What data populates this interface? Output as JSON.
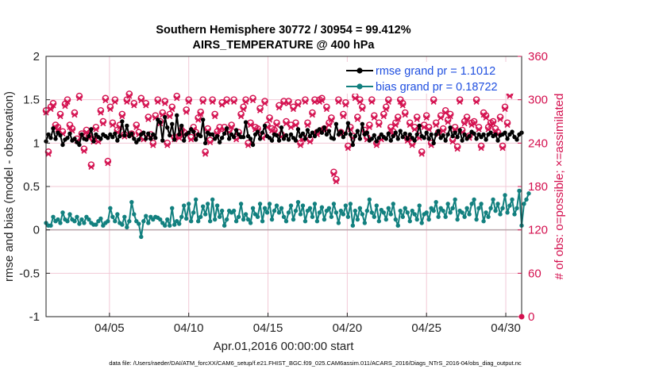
{
  "chart_data": {
    "type": "line",
    "title_line1": "Southern Hemisphere 30772 / 30954 = 99.412%",
    "title_line2": "AIRS_TEMPERATURE @ 400 hPa",
    "xlabel": "Apr.01,2016 00:00:00 start",
    "ylabel_left": "rmse and bias (model - observation)",
    "ylabel_right": "# of obs: o=possible; ×=assimilated",
    "xlim": [
      1,
      31
    ],
    "ylim_left": [
      -1,
      2
    ],
    "ylim_right": [
      0,
      360
    ],
    "x_ticks": [
      5,
      10,
      15,
      20,
      25,
      30
    ],
    "x_tick_labels": [
      "04/05",
      "04/10",
      "04/15",
      "04/20",
      "04/25",
      "04/30"
    ],
    "y_ticks_left": [
      -1,
      -0.5,
      0,
      0.5,
      1,
      1.5,
      2
    ],
    "y_tick_labels_left": [
      "-1",
      "-0.5",
      "0",
      "0.5",
      "1",
      "1.5",
      "2"
    ],
    "y_ticks_right": [
      0,
      60,
      120,
      180,
      240,
      300,
      360
    ],
    "y_tick_labels_right": [
      "0",
      "60",
      "120",
      "180",
      "240",
      "300",
      "360"
    ],
    "footnote": "data file: /Users/raeder/DAI/ATM_forcXX/CAM6_setup/f.e21.FHIST_BGC.f09_025.CAM6assim.011/ACARS_2016/Diags_NTrS_2016-04/obs_diag_output.nc",
    "colors": {
      "rmse": "#000000",
      "bias": "#12807f",
      "obs": "#d4104f",
      "zero_line": "#b7a3a8",
      "grid": "#f2c9d6"
    },
    "series": [
      {
        "name": "rmse grand pr = 1.1012",
        "values": [
          1.02,
          1.1,
          1.06,
          1.17,
          1.05,
          1.12,
          1.09,
          0.98,
          1.04,
          1.06,
          1.11,
          1.03,
          1.05,
          1.01,
          0.98,
          1.1,
          1.05,
          1.04,
          1.08,
          1.16,
          1.02,
          1.1,
          1.07,
          1.05,
          1.1,
          1.08,
          1.06,
          1.1,
          1.07,
          1.11,
          1.03,
          1.08,
          1.25,
          1.09,
          1.2,
          1.08,
          1.11,
          1.05,
          1.01,
          1.04,
          1.1,
          1.12,
          1.05,
          1.11,
          1.05,
          1.1,
          1.06,
          1.27,
          1.24,
          1.03,
          1.3,
          1.18,
          1.09,
          1.22,
          1.04,
          1.32,
          1.1,
          1.2,
          1.03,
          1.1,
          1.12,
          1.16,
          1.13,
          1.04,
          1.1,
          1.08,
          1.27,
          1.0,
          1.12,
          1.1,
          1.1,
          1.05,
          1.08,
          1.01,
          1.06,
          1.11,
          1.17,
          1.05,
          1.1,
          1.07,
          1.15,
          1.1,
          1.07,
          1.07,
          1.24,
          1.08,
          1.05,
          0.98,
          1.1,
          1.13,
          1.05,
          1.12,
          1.2,
          1.08,
          1.06,
          1.03,
          1.1,
          1.09,
          1.03,
          1.18,
          1.05,
          1.09,
          1.04,
          1.1,
          1.06,
          1.03,
          1.16,
          1.08,
          1.11,
          1.05,
          1.15,
          1.08,
          1.12,
          1.08,
          1.14,
          1.16,
          1.12,
          1.18,
          1.1,
          1.14,
          1.06,
          1.05,
          1.22,
          1.1,
          1.13,
          1.07,
          1.11,
          1.23,
          1.1,
          0.98,
          1.08,
          1.14,
          1.05,
          1.22,
          1.1,
          1.12,
          1.03,
          1.05,
          1.09,
          1.02,
          1.06,
          1.1,
          1.07,
          1.05,
          1.11,
          1.03,
          1.08,
          1.12,
          1.05,
          1.14,
          1.07,
          1.11,
          1.05,
          1.1,
          1.06,
          1.03,
          1.1,
          1.2,
          1.08,
          1.06,
          1.12,
          1.05,
          1.1,
          1.0,
          1.1,
          1.14,
          1.06,
          1.09,
          1.03,
          1.1,
          1.18,
          1.08,
          1.12,
          1.07,
          1.15,
          1.03,
          1.1,
          1.05,
          1.08,
          1.13,
          1.11,
          1.05,
          1.1,
          1.07,
          1.1,
          1.04,
          1.1,
          1.12,
          1.08,
          1.1,
          1.03,
          1.09,
          1.1,
          1.12,
          1.05,
          1.1,
          1.13,
          1.07,
          1.04,
          1.1,
          1.12
        ]
      },
      {
        "name": "bias grand pr = 0.18722",
        "values": [
          0.08,
          0.05,
          0.05,
          0.15,
          0.1,
          0.12,
          0.08,
          0.2,
          0.12,
          0.1,
          0.18,
          0.12,
          0.1,
          0.15,
          0.07,
          0.12,
          0.08,
          0.15,
          0.12,
          0.08,
          0.06,
          0.06,
          0.1,
          0.13,
          0.05,
          0.08,
          0.1,
          0.25,
          0.15,
          0.1,
          0.18,
          0.08,
          0.06,
          0.15,
          0.03,
          0.1,
          0.32,
          0.18,
          0.1,
          0.07,
          -0.08,
          0.1,
          0.16,
          0.08,
          0.15,
          0.12,
          0.15,
          0.14,
          0.12,
          0.08,
          0.05,
          0.12,
          0.05,
          0.25,
          0.06,
          0.1,
          0.07,
          0.15,
          0.28,
          0.13,
          0.3,
          0.1,
          0.2,
          0.35,
          0.1,
          0.15,
          0.27,
          0.18,
          0.3,
          0.1,
          0.35,
          0.12,
          0.28,
          0.15,
          0.22,
          0.05,
          0.12,
          0.22,
          0.2,
          0.22,
          0.1,
          0.15,
          0.3,
          0.12,
          0.18,
          0.12,
          0.08,
          0.25,
          0.18,
          0.15,
          0.3,
          0.1,
          0.25,
          0.2,
          0.3,
          0.12,
          0.22,
          0.28,
          0.2,
          0.25,
          0.15,
          0.1,
          0.2,
          0.28,
          0.12,
          0.22,
          0.32,
          0.18,
          0.28,
          0.1,
          0.22,
          0.25,
          0.15,
          0.3,
          0.1,
          0.2,
          0.26,
          0.12,
          0.22,
          0.25,
          0.15,
          0.3,
          0.2,
          0.08,
          0.22,
          0.18,
          0.28,
          0.15,
          0.3,
          0.05,
          0.22,
          0.12,
          0.25,
          0.18,
          0.08,
          0.22,
          0.35,
          0.2,
          0.15,
          0.28,
          0.1,
          0.23,
          0.2,
          0.12,
          0.25,
          0.18,
          0.3,
          0.12,
          0.05,
          0.22,
          0.15,
          0.25,
          0.2,
          0.1,
          0.22,
          0.18,
          0.12,
          0.28,
          0.08,
          0.18,
          0.2,
          0.12,
          0.25,
          0.22,
          0.32,
          0.15,
          0.25,
          0.22,
          0.15,
          0.3,
          0.2,
          0.25,
          0.35,
          0.12,
          0.22,
          0.2,
          0.15,
          0.25,
          0.18,
          0.3,
          0.35,
          0.12,
          0.25,
          0.3,
          0.1,
          0.2,
          0.15,
          0.25,
          0.35,
          0.22,
          0.3,
          0.18,
          0.25,
          0.4,
          0.2,
          0.28,
          0.35,
          0.18,
          0.25,
          0.45,
          0.05,
          0.3,
          0.35,
          0.42
        ]
      }
    ],
    "obs_possible": [
      285,
      228,
      290,
      295,
      265,
      262,
      280,
      256,
      294,
      300,
      265,
      260,
      282,
      246,
      305,
      253,
      232,
      258,
      250,
      210,
      245,
      262,
      245,
      285,
      270,
      302,
      215,
      290,
      268,
      300,
      258,
      265,
      280,
      252,
      300,
      308,
      253,
      295,
      265,
      255,
      302,
      248,
      295,
      276,
      252,
      240,
      278,
      300,
      270,
      282,
      298,
      240,
      280,
      290,
      248,
      305,
      250,
      258,
      255,
      286,
      300,
      248,
      262,
      255,
      275,
      283,
      300,
      228,
      260,
      244,
      300,
      280,
      256,
      262,
      296,
      262,
      300,
      258,
      265,
      300,
      248,
      255,
      280,
      290,
      300,
      240,
      268,
      302,
      262,
      260,
      288,
      250,
      298,
      265,
      275,
      260,
      258,
      268,
      292,
      252,
      298,
      270,
      298,
      265,
      290,
      268,
      296,
      240,
      248,
      300,
      268,
      245,
      282,
      300,
      255,
      300,
      302,
      260,
      290,
      268,
      275,
      200,
      190,
      300,
      255,
      280,
      296,
      236,
      262,
      250,
      305,
      276,
      300,
      290,
      258,
      248,
      265,
      300,
      278,
      240,
      268,
      248,
      280,
      290,
      300,
      262,
      256,
      268,
      276,
      300,
      295,
      282,
      246,
      268,
      240,
      262,
      276,
      250,
      228,
      265,
      278,
      262,
      240,
      300,
      268,
      255,
      278,
      260,
      285,
      272,
      280,
      245,
      262,
      235,
      300,
      258,
      270,
      276,
      250,
      268,
      270,
      300,
      262,
      236,
      282,
      278,
      262,
      268,
      270,
      260,
      255,
      276,
      236,
      290,
      268,
      308
    ],
    "obs_assimilated": [
      282,
      225,
      287,
      292,
      262,
      259,
      277,
      253,
      291,
      297,
      262,
      257,
      279,
      243,
      302,
      250,
      229,
      255,
      247,
      207,
      242,
      259,
      242,
      282,
      267,
      299,
      212,
      287,
      265,
      297,
      255,
      262,
      277,
      249,
      297,
      305,
      250,
      292,
      262,
      252,
      299,
      245,
      292,
      273,
      249,
      237,
      275,
      297,
      267,
      279,
      295,
      237,
      277,
      287,
      245,
      302,
      247,
      255,
      252,
      283,
      297,
      245,
      259,
      252,
      272,
      280,
      297,
      225,
      257,
      241,
      297,
      277,
      253,
      259,
      293,
      259,
      297,
      255,
      262,
      297,
      245,
      252,
      277,
      287,
      297,
      237,
      265,
      299,
      259,
      257,
      285,
      247,
      295,
      262,
      272,
      257,
      255,
      265,
      289,
      249,
      295,
      267,
      295,
      262,
      287,
      265,
      293,
      237,
      245,
      297,
      265,
      242,
      279,
      297,
      252,
      297,
      299,
      257,
      287,
      265,
      272,
      197,
      187,
      297,
      252,
      277,
      293,
      233,
      259,
      247,
      302,
      273,
      297,
      287,
      255,
      245,
      262,
      297,
      275,
      237,
      265,
      245,
      277,
      287,
      297,
      259,
      253,
      265,
      273,
      297,
      292,
      279,
      243,
      265,
      237,
      259,
      273,
      247,
      225,
      262,
      275,
      259,
      237,
      297,
      265,
      252,
      275,
      257,
      282,
      269,
      277,
      242,
      259,
      232,
      297,
      255,
      267,
      273,
      247,
      265,
      267,
      297,
      259,
      233,
      279,
      275,
      259,
      265,
      267,
      257,
      252,
      273,
      233,
      287,
      265,
      305
    ]
  }
}
